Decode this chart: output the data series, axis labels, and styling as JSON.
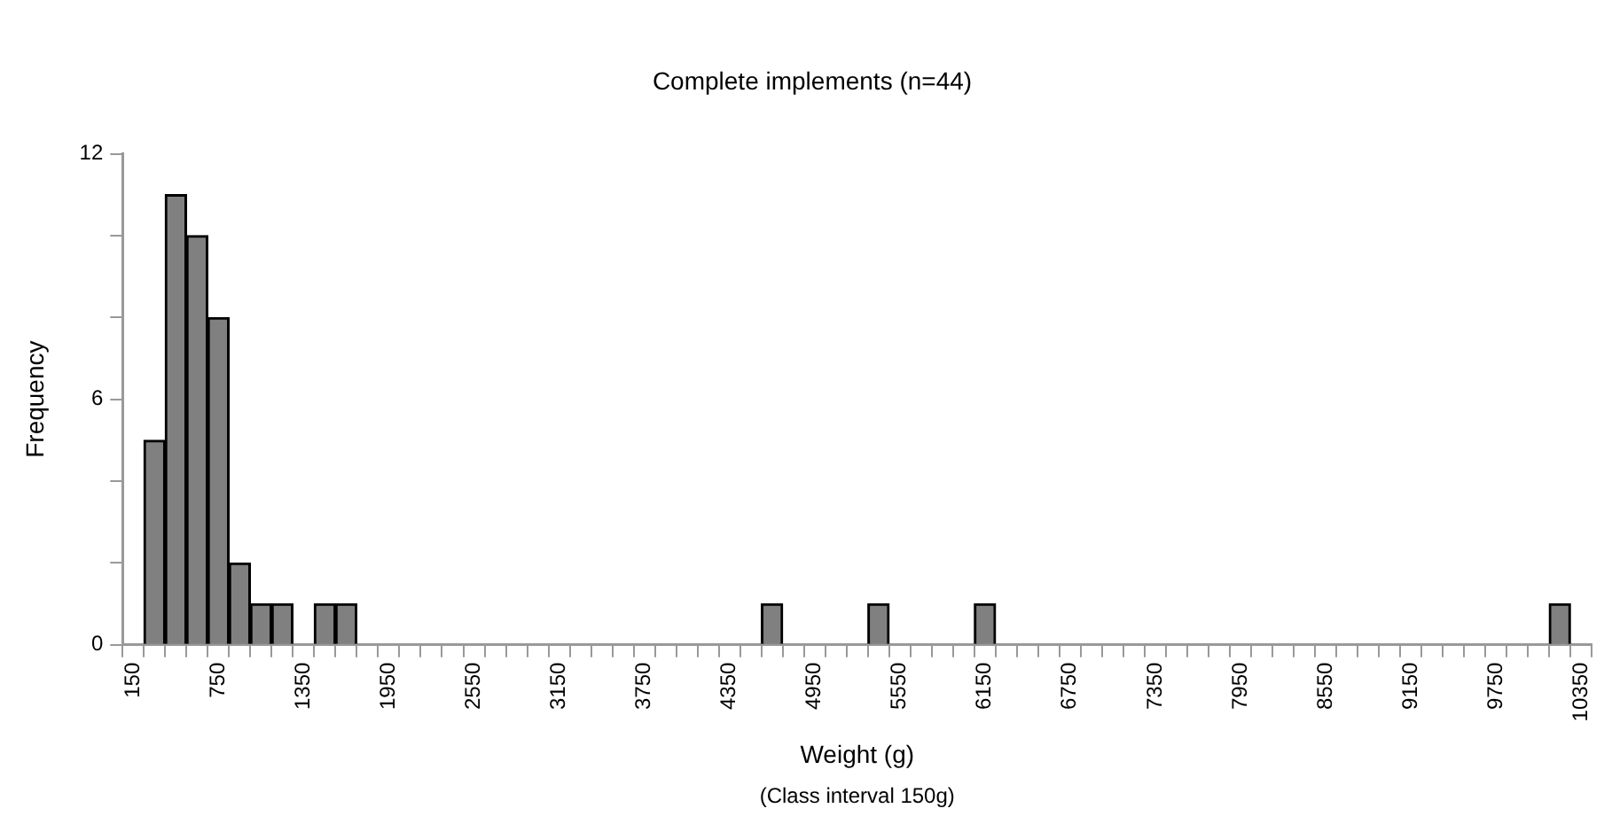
{
  "chart_data": {
    "type": "bar",
    "title": "Complete implements (n=44)",
    "xlabel": "Weight (g)",
    "ylabel": "Frequency",
    "annotations": [
      "(Class interval 150g)"
    ],
    "categories": [
      "150",
      null,
      null,
      null,
      "750",
      null,
      null,
      null,
      "1350",
      null,
      null,
      null,
      "1950",
      null,
      null,
      null,
      "2550",
      null,
      null,
      null,
      "3150",
      null,
      null,
      null,
      "3750",
      null,
      null,
      null,
      "4350",
      null,
      null,
      null,
      "4950",
      null,
      null,
      null,
      "5550",
      null,
      null,
      null,
      "6150",
      null,
      null,
      null,
      "6750",
      null,
      null,
      null,
      "7350",
      null,
      null,
      null,
      "7950",
      null,
      null,
      null,
      "8550",
      null,
      null,
      null,
      "9150",
      null,
      null,
      null,
      "9750",
      null,
      null,
      null,
      "10350"
    ],
    "values": [
      0,
      5,
      11,
      10,
      8,
      2,
      1,
      1,
      0,
      1,
      1,
      0,
      0,
      0,
      0,
      0,
      0,
      0,
      0,
      0,
      0,
      0,
      0,
      0,
      0,
      0,
      0,
      0,
      0,
      0,
      1,
      0,
      0,
      0,
      0,
      1,
      0,
      0,
      0,
      0,
      1,
      0,
      0,
      0,
      0,
      0,
      0,
      0,
      0,
      0,
      0,
      0,
      0,
      0,
      0,
      0,
      0,
      0,
      0,
      0,
      0,
      0,
      0,
      0,
      0,
      0,
      0,
      1,
      0
    ],
    "color": "#808080",
    "ylim": [
      0,
      12
    ],
    "yticks": [
      0,
      {
        "value": 2,
        "label": null
      },
      {
        "value": 4,
        "label": null
      },
      6,
      {
        "value": 8,
        "label": null
      },
      {
        "value": 10,
        "label": null
      },
      12
    ],
    "grid": false,
    "legend": false
  }
}
